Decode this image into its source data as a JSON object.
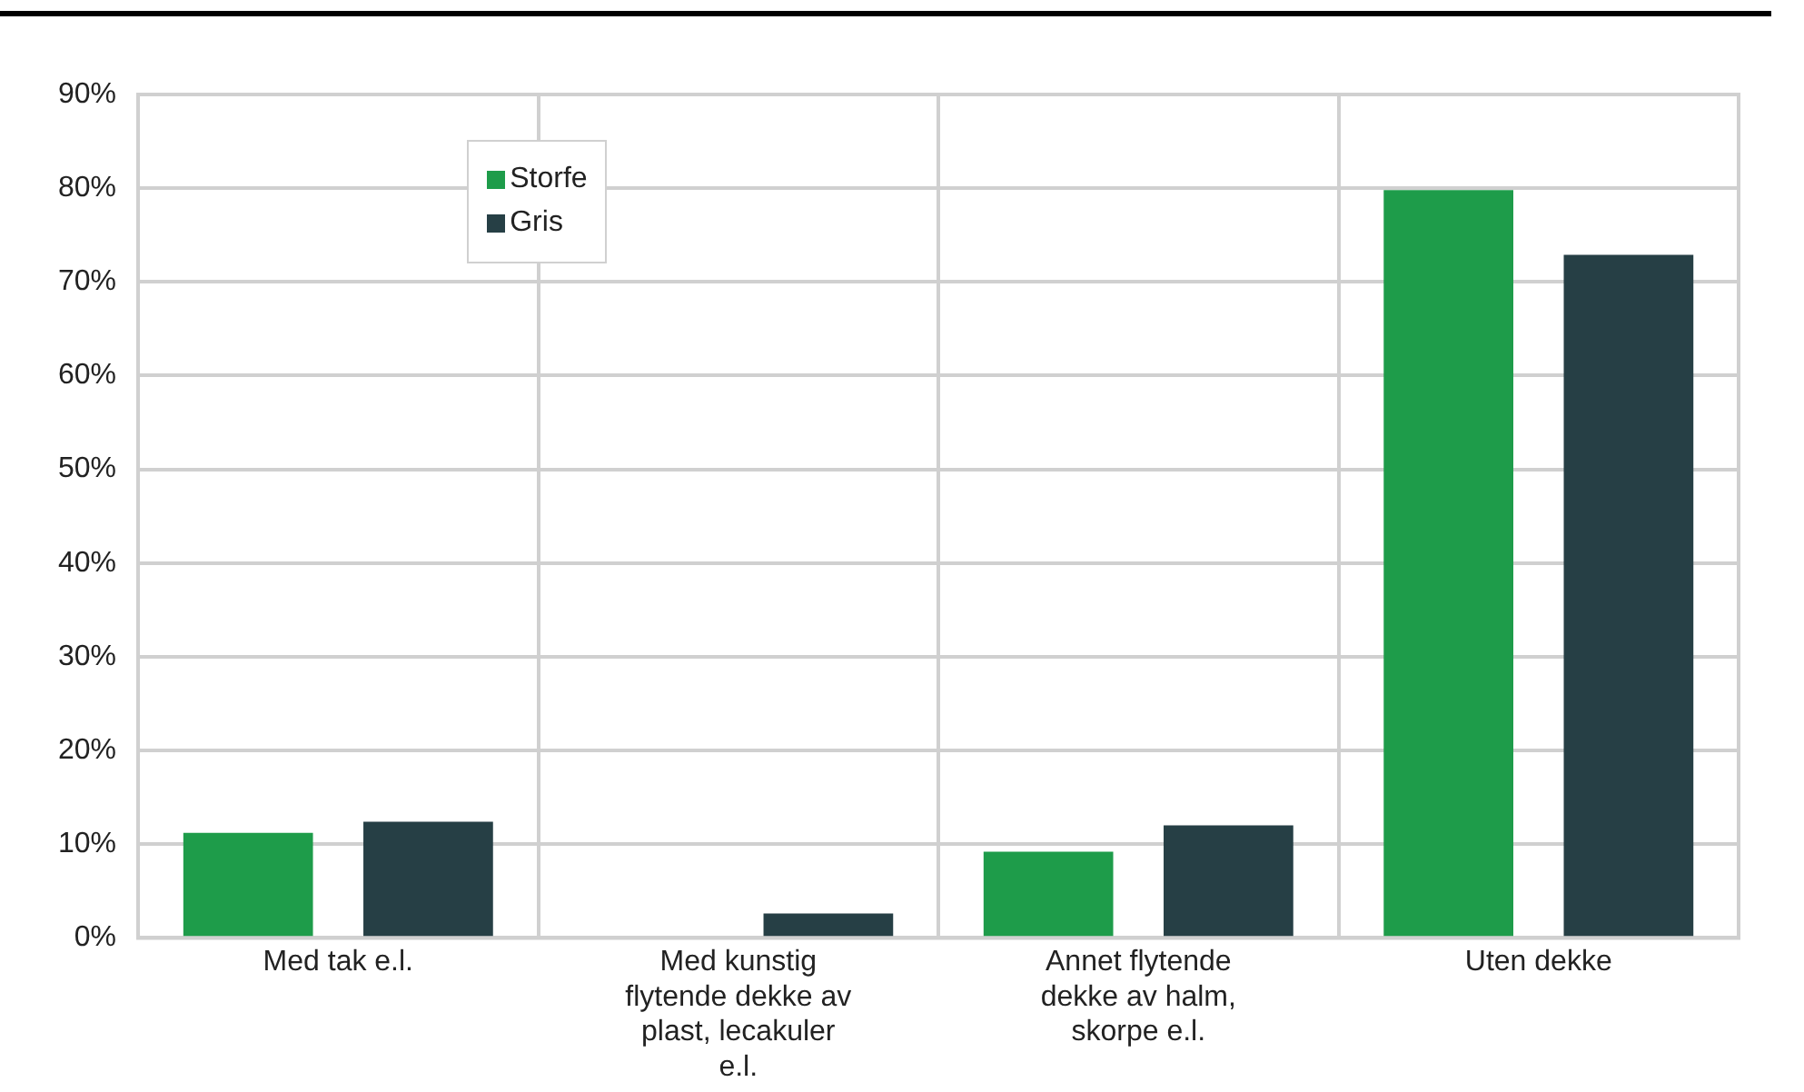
{
  "chart_data": {
    "type": "bar",
    "categories": [
      "Med tak e.l.",
      "Med kunstig flytende dekke av plast, lecakuler e.l.",
      "Annet flytende dekke av halm, skorpe e.l.",
      "Uten dekke"
    ],
    "series": [
      {
        "name": "Storfe",
        "color": "#1e9c4a",
        "values": [
          11.2,
          0,
          9.2,
          79.8
        ]
      },
      {
        "name": "Gris",
        "color": "#263f45",
        "values": [
          12.4,
          2.6,
          12.0,
          72.9
        ]
      }
    ],
    "ylim": [
      0,
      90
    ],
    "yticks": [
      {
        "value": 0,
        "label": "0%"
      },
      {
        "value": 10,
        "label": "10%"
      },
      {
        "value": 20,
        "label": "20%"
      },
      {
        "value": 30,
        "label": "30%"
      },
      {
        "value": 40,
        "label": "40%"
      },
      {
        "value": 50,
        "label": "50%"
      },
      {
        "value": 60,
        "label": "60%"
      },
      {
        "value": 70,
        "label": "70%"
      },
      {
        "value": 80,
        "label": "80%"
      },
      {
        "value": 90,
        "label": "90%"
      }
    ],
    "grid": true,
    "legend": "top left"
  }
}
